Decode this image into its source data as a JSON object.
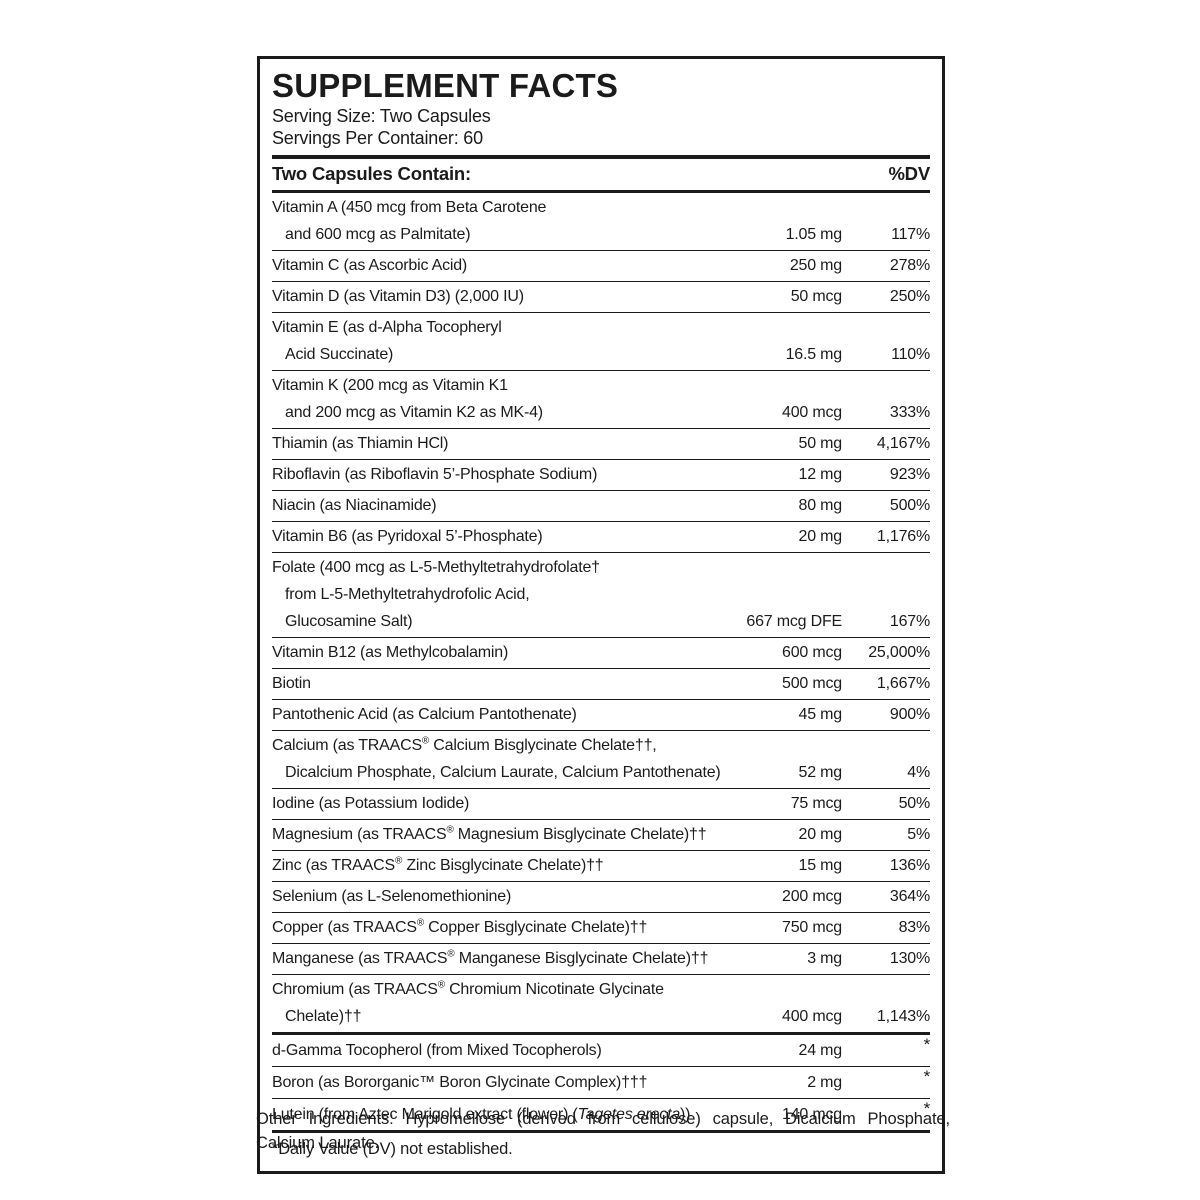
{
  "label": {
    "title": "SUPPLEMENT FACTS",
    "serving_size": "Serving Size: Two Capsules",
    "servings_per_container": "Servings Per Container: 60",
    "contains_header": "Two Capsules Contain:",
    "dv_header": "%DV",
    "footnote": "*Daily Value (DV) not established.",
    "other_ingredients": "Other Ingredients: Hypromellose (derived from cellulose) capsule, Dicalcium Phosphate, Calcium Laurate."
  },
  "colors": {
    "ink": "#1b1b1b",
    "background": "#ffffff"
  },
  "rows": [
    {
      "name_lines": [
        "Vitamin A (450 mcg from Beta Carotene",
        {
          "ind": true,
          "text": "and 600 mcg as Palmitate)"
        }
      ],
      "amount": "1.05 mg",
      "dv": "117%"
    },
    {
      "name_lines": [
        "Vitamin C (as Ascorbic Acid)"
      ],
      "amount": "250 mg",
      "dv": "278%"
    },
    {
      "name_lines": [
        "Vitamin D (as Vitamin D3) (2,000 IU)"
      ],
      "amount": "50 mcg",
      "dv": "250%"
    },
    {
      "name_lines": [
        "Vitamin E (as d-Alpha Tocopheryl",
        {
          "ind": true,
          "text": "Acid Succinate)"
        }
      ],
      "amount": "16.5 mg",
      "dv": "110%"
    },
    {
      "name_lines": [
        "Vitamin K (200 mcg as Vitamin K1",
        {
          "ind": true,
          "text": "and 200 mcg as Vitamin K2 as MK-4)"
        }
      ],
      "amount": "400 mcg",
      "dv": "333%"
    },
    {
      "name_lines": [
        "Thiamin (as Thiamin HCl)"
      ],
      "amount": "50 mg",
      "dv": "4,167%"
    },
    {
      "name_lines": [
        "Riboflavin (as Riboflavin 5’-Phosphate Sodium)"
      ],
      "amount": "12 mg",
      "dv": "923%"
    },
    {
      "name_lines": [
        "Niacin (as Niacinamide)"
      ],
      "amount": "80 mg",
      "dv": "500%"
    },
    {
      "name_lines": [
        "Vitamin B6 (as Pyridoxal 5’-Phosphate)"
      ],
      "amount": "20 mg",
      "dv": "1,176%"
    },
    {
      "name_lines": [
        "Folate (400 mcg as L-5-Methyltetrahydrofolate†",
        {
          "ind": true,
          "text": "from L-5-Methyltetrahydrofolic Acid,"
        },
        {
          "ind": true,
          "text": "Glucosamine Salt)"
        }
      ],
      "amount": "667 mcg DFE",
      "dv": "167%"
    },
    {
      "name_lines": [
        "Vitamin B12 (as Methylcobalamin)"
      ],
      "amount": "600 mcg",
      "dv": "25,000%"
    },
    {
      "name_lines": [
        "Biotin"
      ],
      "amount": "500 mcg",
      "dv": "1,667%"
    },
    {
      "name_lines": [
        "Pantothenic Acid (as Calcium Pantothenate)"
      ],
      "amount": "45 mg",
      "dv": "900%"
    },
    {
      "name_lines": [
        "Calcium (as TRAACS® Calcium Bisglycinate Chelate††,",
        {
          "ind": true,
          "text": "Dicalcium Phosphate, Calcium Laurate, Calcium Pantothenate)"
        }
      ],
      "amount": "52 mg",
      "dv": "4%"
    },
    {
      "name_lines": [
        "Iodine (as Potassium Iodide)"
      ],
      "amount": "75 mcg",
      "dv": "50%"
    },
    {
      "name_lines": [
        "Magnesium (as TRAACS® Magnesium Bisglycinate Chelate)††"
      ],
      "amount": "20 mg",
      "dv": "5%"
    },
    {
      "name_lines": [
        "Zinc (as TRAACS® Zinc Bisglycinate Chelate)††"
      ],
      "amount": "15 mg",
      "dv": "136%"
    },
    {
      "name_lines": [
        "Selenium (as L-Selenomethionine)"
      ],
      "amount": "200 mcg",
      "dv": "364%"
    },
    {
      "name_lines": [
        "Copper (as TRAACS® Copper Bisglycinate Chelate)††"
      ],
      "amount": "750 mcg",
      "dv": "83%"
    },
    {
      "name_lines": [
        "Manganese (as TRAACS® Manganese Bisglycinate Chelate)††"
      ],
      "amount": "3 mg",
      "dv": "130%"
    },
    {
      "name_lines": [
        "Chromium (as TRAACS® Chromium Nicotinate Glycinate",
        {
          "ind": true,
          "text": "Chelate)††"
        }
      ],
      "amount": "400 mcg",
      "dv": "1,143%",
      "thick_bottom": true
    },
    {
      "name_lines": [
        "d-Gamma Tocopherol (from Mixed Tocopherols)"
      ],
      "amount": "24 mg",
      "dv": "*",
      "dv_star": true
    },
    {
      "name_lines": [
        "Boron (as Bororganic™ Boron Glycinate Complex)†††"
      ],
      "amount": "2 mg",
      "dv": "*",
      "dv_star": true
    },
    {
      "name_lines": [
        {
          "parts": [
            {
              "t": "Lutein (from Aztec Marigold extract (flower) ("
            },
            {
              "t": "Tagetes erecta",
              "italic": true
            },
            {
              "t": "))"
            }
          ]
        }
      ],
      "amount": "140 mcg",
      "dv": "*",
      "dv_star": true,
      "thick_bottom": true
    }
  ]
}
